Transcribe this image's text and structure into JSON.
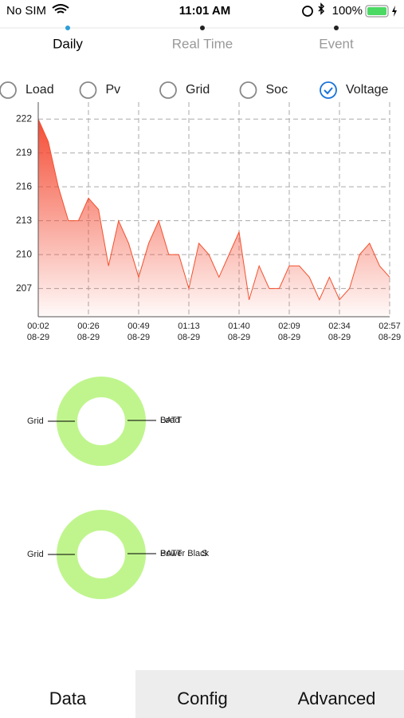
{
  "status_bar": {
    "carrier": "No SIM",
    "time": "11:01 AM",
    "battery": "100%"
  },
  "top_tabs": {
    "items": [
      "Daily",
      "Real Time",
      "Event"
    ],
    "active": 0
  },
  "options": {
    "items": [
      "Load",
      "Pv",
      "Grid",
      "Soc",
      "Voltage"
    ],
    "checked": 4
  },
  "chart_data": {
    "type": "area",
    "color": "#f4502e",
    "values": [
      222,
      220,
      216,
      213,
      213,
      215,
      214,
      209,
      213,
      211,
      208,
      211,
      213,
      210,
      210,
      207,
      211,
      210,
      208,
      210,
      212,
      206,
      209,
      207,
      207,
      209,
      209,
      208,
      206,
      208,
      206,
      207,
      210,
      211,
      209,
      208
    ],
    "xlim": [
      0,
      35
    ],
    "xticks": [
      {
        "value": 0,
        "label": "00:02"
      },
      {
        "value": 5,
        "label": "00:26"
      },
      {
        "value": 10,
        "label": "00:49"
      },
      {
        "value": 15,
        "label": "01:13"
      },
      {
        "value": 20,
        "label": "01:40"
      },
      {
        "value": 25,
        "label": "02:09"
      },
      {
        "value": 30,
        "label": "02:34"
      },
      {
        "value": 35,
        "label": "02:57"
      }
    ],
    "xtick_dates": [
      "08-29",
      "08-29",
      "08-29",
      "08-29",
      "08-29",
      "08-29",
      "08-29",
      "08-29"
    ],
    "ylim": [
      204.5,
      223.5
    ],
    "yticks": [
      207,
      210,
      213,
      216,
      219,
      222
    ],
    "grid": true
  },
  "donuts": [
    {
      "left_label": "Grid",
      "right_labels": [
        "BATT",
        "Load"
      ]
    },
    {
      "left_label": "Grid",
      "right_labels": [
        "BATT",
        "Power Black",
        "S"
      ]
    }
  ],
  "bottom_tabs": {
    "items": [
      "Data",
      "Config",
      "Advanced"
    ],
    "active": 0
  }
}
